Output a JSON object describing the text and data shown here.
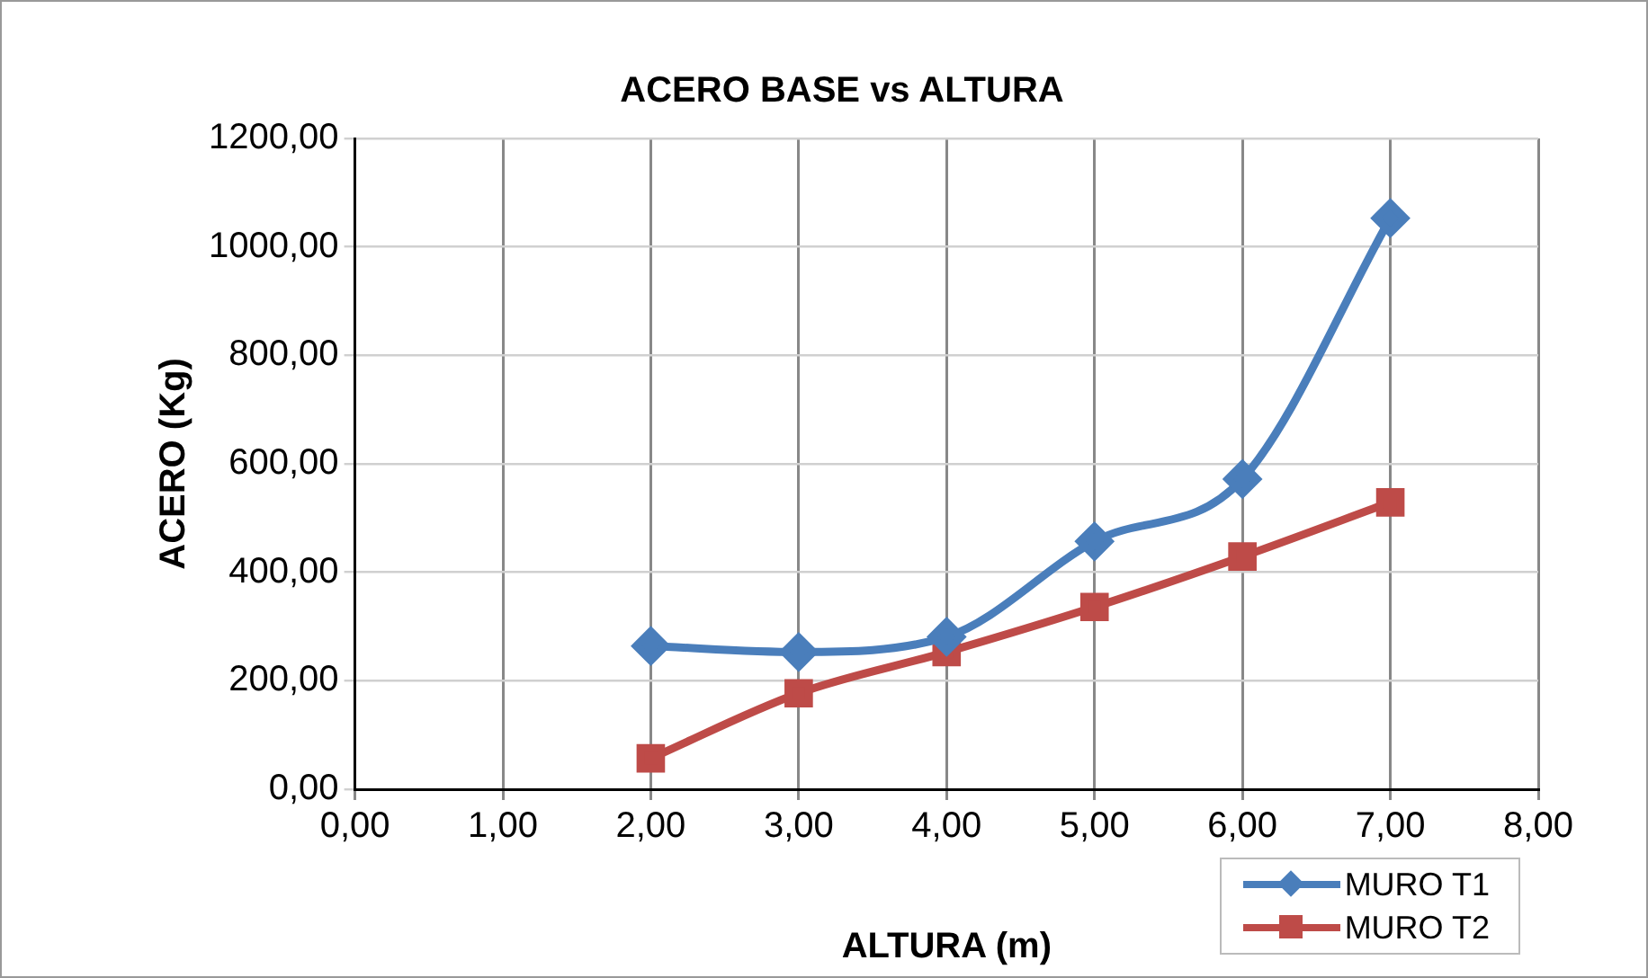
{
  "chart_data": {
    "type": "line",
    "title": "ACERO BASE vs ALTURA",
    "xlabel": "ALTURA (m)",
    "ylabel": "ACERO (Kg)",
    "xlim": [
      0,
      8
    ],
    "xticks": [
      {
        "value": 0,
        "label": "0,00"
      },
      {
        "value": 1,
        "label": "1,00"
      },
      {
        "value": 2,
        "label": "2,00"
      },
      {
        "value": 3,
        "label": "3,00"
      },
      {
        "value": 4,
        "label": "4,00"
      },
      {
        "value": 5,
        "label": "5,00"
      },
      {
        "value": 6,
        "label": "6,00"
      },
      {
        "value": 7,
        "label": "7,00"
      },
      {
        "value": 8,
        "label": "8,00"
      }
    ],
    "ylim": [
      0,
      1200
    ],
    "yticks": [
      {
        "value": 0,
        "label": "0,00"
      },
      {
        "value": 200,
        "label": "200,00"
      },
      {
        "value": 400,
        "label": "400,00"
      },
      {
        "value": 600,
        "label": "600,00"
      },
      {
        "value": 800,
        "label": "800,00"
      },
      {
        "value": 1000,
        "label": "1000,00"
      },
      {
        "value": 1200,
        "label": "1200,00"
      }
    ],
    "x": [
      2,
      3,
      4,
      5,
      6,
      7
    ],
    "series": [
      {
        "name": "MURO T1",
        "color": "#4a7ebb",
        "marker": "diamond",
        "values": [
          264,
          253,
          281,
          457,
          572,
          1053
        ]
      },
      {
        "name": "MURO T2",
        "color": "#be4b48",
        "marker": "square",
        "values": [
          57,
          177,
          253,
          336,
          429,
          529
        ]
      }
    ],
    "grid": true,
    "legend": "bottom right",
    "line_style": "solid"
  }
}
